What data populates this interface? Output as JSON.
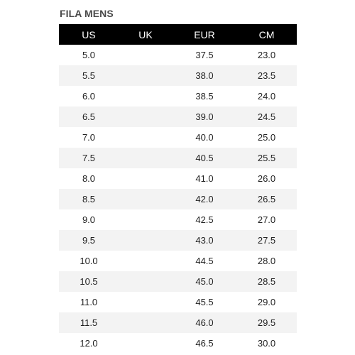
{
  "title": "FILA MENS",
  "table": {
    "headers": [
      "US",
      "UK",
      "EUR",
      "CM"
    ],
    "rows": [
      [
        "5.0",
        "",
        "37.5",
        "23.0"
      ],
      [
        "5.5",
        "",
        "38.0",
        "23.5"
      ],
      [
        "6.0",
        "",
        "38.5",
        "24.0"
      ],
      [
        "6.5",
        "",
        "39.0",
        "24.5"
      ],
      [
        "7.0",
        "",
        "40.0",
        "25.0"
      ],
      [
        "7.5",
        "",
        "40.5",
        "25.5"
      ],
      [
        "8.0",
        "",
        "41.0",
        "26.0"
      ],
      [
        "8.5",
        "",
        "42.0",
        "26.5"
      ],
      [
        "9.0",
        "",
        "42.5",
        "27.0"
      ],
      [
        "9.5",
        "",
        "43.0",
        "27.5"
      ],
      [
        "10.0",
        "",
        "44.5",
        "28.0"
      ],
      [
        "10.5",
        "",
        "45.0",
        "28.5"
      ],
      [
        "11.0",
        "",
        "45.5",
        "29.0"
      ],
      [
        "11.5",
        "",
        "46.0",
        "29.5"
      ],
      [
        "12.0",
        "",
        "46.5",
        "30.0"
      ]
    ]
  },
  "colors": {
    "header_bg": "#000000",
    "header_text": "#ffffff",
    "stripe": "#f3f3f3"
  }
}
